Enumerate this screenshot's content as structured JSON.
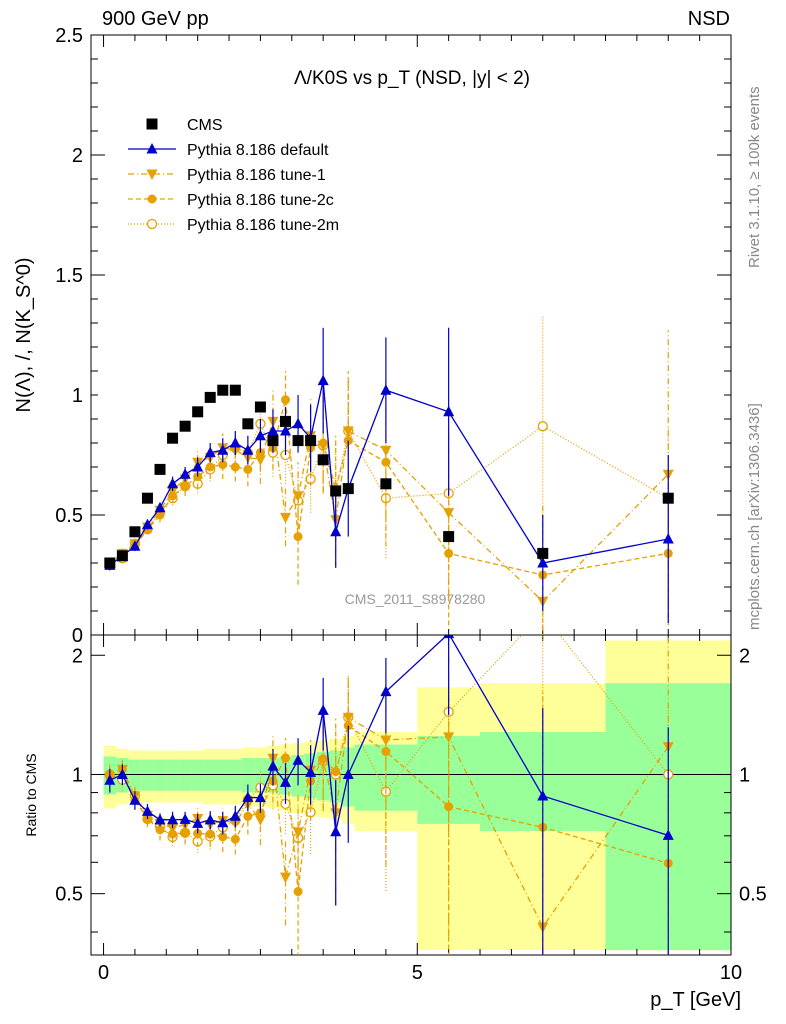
{
  "header": {
    "left": "900 GeV pp",
    "right": "NSD",
    "rivet": "Rivet 3.1.10, ≥ 100k events",
    "mcplots": "mcplots.cern.ch [arXiv:1306.3436]"
  },
  "colors": {
    "data": "#000000",
    "default": "#0000cc",
    "tunes": "#e6a000",
    "band_green": "#99ff99",
    "band_yellow": "#ffff99"
  },
  "chart_data": {
    "type": "line",
    "title": "Λ/K0S vs p_T (NSD, |y| < 2)",
    "watermark": "CMS_2011_S8978280",
    "ylabel": "N(Λ), /, N(K_S^0)",
    "ratio_ylabel": "Ratio to CMS",
    "xlabel": "p_T [GeV]",
    "xlim": [
      -0.2,
      10.0
    ],
    "ylim": [
      0,
      2.5
    ],
    "ratio_ylim": [
      0.35,
      2.25
    ],
    "x_ticks": [
      "0",
      "5",
      "10"
    ],
    "y_ticks": [
      "0",
      "0.5",
      "1",
      "1.5",
      "2",
      "2.5"
    ],
    "ratio_ticks": [
      "0.5",
      "1",
      "2"
    ],
    "x": [
      0.1,
      0.3,
      0.5,
      0.7,
      0.9,
      1.1,
      1.3,
      1.5,
      1.7,
      1.9,
      2.1,
      2.3,
      2.5,
      2.7,
      2.9,
      3.1,
      3.3,
      3.5,
      3.7,
      3.9,
      4.5,
      5.5,
      7.0,
      9.0
    ],
    "series": [
      {
        "name": "CMS",
        "style": "data",
        "values": [
          0.3,
          0.33,
          0.43,
          0.57,
          0.69,
          0.82,
          0.87,
          0.93,
          0.99,
          1.02,
          1.02,
          0.88,
          0.95,
          0.81,
          0.89,
          0.81,
          0.81,
          0.73,
          0.6,
          0.61,
          0.63,
          0.41,
          0.34,
          0.57
        ]
      },
      {
        "name": "Pythia 8.186 default",
        "style": "default",
        "values": [
          0.29,
          0.33,
          0.37,
          0.46,
          0.53,
          0.63,
          0.67,
          0.7,
          0.76,
          0.77,
          0.8,
          0.77,
          0.83,
          0.85,
          0.85,
          0.88,
          0.82,
          1.06,
          0.43,
          0.61,
          1.02,
          0.93,
          0.3,
          0.4
        ],
        "errors": [
          0.02,
          0.02,
          0.02,
          0.02,
          0.02,
          0.03,
          0.03,
          0.04,
          0.04,
          0.05,
          0.05,
          0.06,
          0.07,
          0.09,
          0.1,
          0.12,
          0.14,
          0.22,
          0.15,
          0.2,
          0.22,
          0.35,
          0.2,
          0.35
        ]
      },
      {
        "name": "Pythia 8.186 tune-1",
        "style": "tune1",
        "values": [
          0.29,
          0.34,
          0.38,
          0.45,
          0.52,
          0.6,
          0.65,
          0.72,
          0.74,
          0.78,
          0.77,
          0.74,
          0.73,
          0.89,
          0.49,
          0.58,
          0.83,
          0.79,
          0.48,
          0.85,
          0.77,
          0.51,
          0.14,
          0.67
        ],
        "errors": [
          0.02,
          0.02,
          0.02,
          0.02,
          0.03,
          0.03,
          0.04,
          0.05,
          0.05,
          0.06,
          0.07,
          0.08,
          0.1,
          0.13,
          0.12,
          0.14,
          0.16,
          0.2,
          0.2,
          0.25,
          0.28,
          0.35,
          0.12,
          0.6
        ]
      },
      {
        "name": "Pythia 8.186 tune-2c",
        "style": "tune2c",
        "values": [
          0.3,
          0.34,
          0.37,
          0.44,
          0.5,
          0.58,
          0.62,
          0.66,
          0.7,
          0.71,
          0.7,
          0.69,
          0.76,
          0.78,
          0.98,
          0.41,
          0.78,
          0.8,
          0.61,
          0.81,
          0.72,
          0.34,
          0.25,
          0.34
        ],
        "errors": [
          0.02,
          0.02,
          0.02,
          0.02,
          0.03,
          0.03,
          0.04,
          0.05,
          0.05,
          0.06,
          0.06,
          0.07,
          0.08,
          0.09,
          0.12,
          0.2,
          0.16,
          0.2,
          0.22,
          0.26,
          0.35,
          0.3,
          0.3,
          0.3
        ]
      },
      {
        "name": "Pythia 8.186 tune-2m",
        "style": "tune2m",
        "values": [
          0.3,
          0.32,
          0.38,
          0.44,
          0.51,
          0.57,
          0.62,
          0.63,
          0.69,
          0.75,
          0.78,
          0.76,
          0.88,
          0.76,
          0.75,
          0.56,
          0.65,
          0.79,
          0.6,
          0.85,
          0.57,
          0.59,
          0.87,
          0.57
        ],
        "errors": [
          0.02,
          0.02,
          0.02,
          0.02,
          0.03,
          0.03,
          0.04,
          0.04,
          0.05,
          0.05,
          0.06,
          0.07,
          0.1,
          0.1,
          0.12,
          0.12,
          0.14,
          0.2,
          0.2,
          0.22,
          0.25,
          0.3,
          0.46,
          0.3
        ]
      }
    ],
    "data_uncertainty": [
      {
        "x_low": 0.0,
        "x_high": 0.2,
        "inner": 0.11,
        "outer": 0.18
      },
      {
        "x_low": 0.2,
        "x_high": 0.4,
        "inner": 0.1,
        "outer": 0.16
      },
      {
        "x_low": 0.4,
        "x_high": 0.6,
        "inner": 0.09,
        "outer": 0.15
      },
      {
        "x_low": 0.6,
        "x_high": 0.8,
        "inner": 0.09,
        "outer": 0.15
      },
      {
        "x_low": 0.8,
        "x_high": 1.0,
        "inner": 0.09,
        "outer": 0.15
      },
      {
        "x_low": 1.0,
        "x_high": 1.2,
        "inner": 0.09,
        "outer": 0.15
      },
      {
        "x_low": 1.2,
        "x_high": 1.4,
        "inner": 0.09,
        "outer": 0.15
      },
      {
        "x_low": 1.4,
        "x_high": 1.6,
        "inner": 0.09,
        "outer": 0.15
      },
      {
        "x_low": 1.6,
        "x_high": 1.8,
        "inner": 0.09,
        "outer": 0.16
      },
      {
        "x_low": 1.8,
        "x_high": 2.0,
        "inner": 0.09,
        "outer": 0.16
      },
      {
        "x_low": 2.0,
        "x_high": 2.2,
        "inner": 0.09,
        "outer": 0.16
      },
      {
        "x_low": 2.2,
        "x_high": 2.4,
        "inner": 0.1,
        "outer": 0.17
      },
      {
        "x_low": 2.4,
        "x_high": 2.6,
        "inner": 0.1,
        "outer": 0.17
      },
      {
        "x_low": 2.6,
        "x_high": 2.8,
        "inner": 0.1,
        "outer": 0.18
      },
      {
        "x_low": 2.8,
        "x_high": 3.0,
        "inner": 0.11,
        "outer": 0.19
      },
      {
        "x_low": 3.0,
        "x_high": 3.2,
        "inner": 0.12,
        "outer": 0.2
      },
      {
        "x_low": 3.2,
        "x_high": 3.4,
        "inner": 0.13,
        "outer": 0.21
      },
      {
        "x_low": 3.4,
        "x_high": 3.6,
        "inner": 0.14,
        "outer": 0.22
      },
      {
        "x_low": 3.6,
        "x_high": 3.8,
        "inner": 0.15,
        "outer": 0.23
      },
      {
        "x_low": 3.8,
        "x_high": 4.0,
        "inner": 0.17,
        "outer": 0.25
      },
      {
        "x_low": 4.0,
        "x_high": 5.0,
        "inner": 0.19,
        "outer": 0.28
      },
      {
        "x_low": 5.0,
        "x_high": 6.0,
        "inner": 0.25,
        "outer": 0.66
      },
      {
        "x_low": 6.0,
        "x_high": 8.0,
        "inner": 0.28,
        "outer": 0.7
      },
      {
        "x_low": 8.0,
        "x_high": 10.0,
        "inner": 0.7,
        "outer": 1.18
      }
    ],
    "legend_position": "top-left"
  }
}
